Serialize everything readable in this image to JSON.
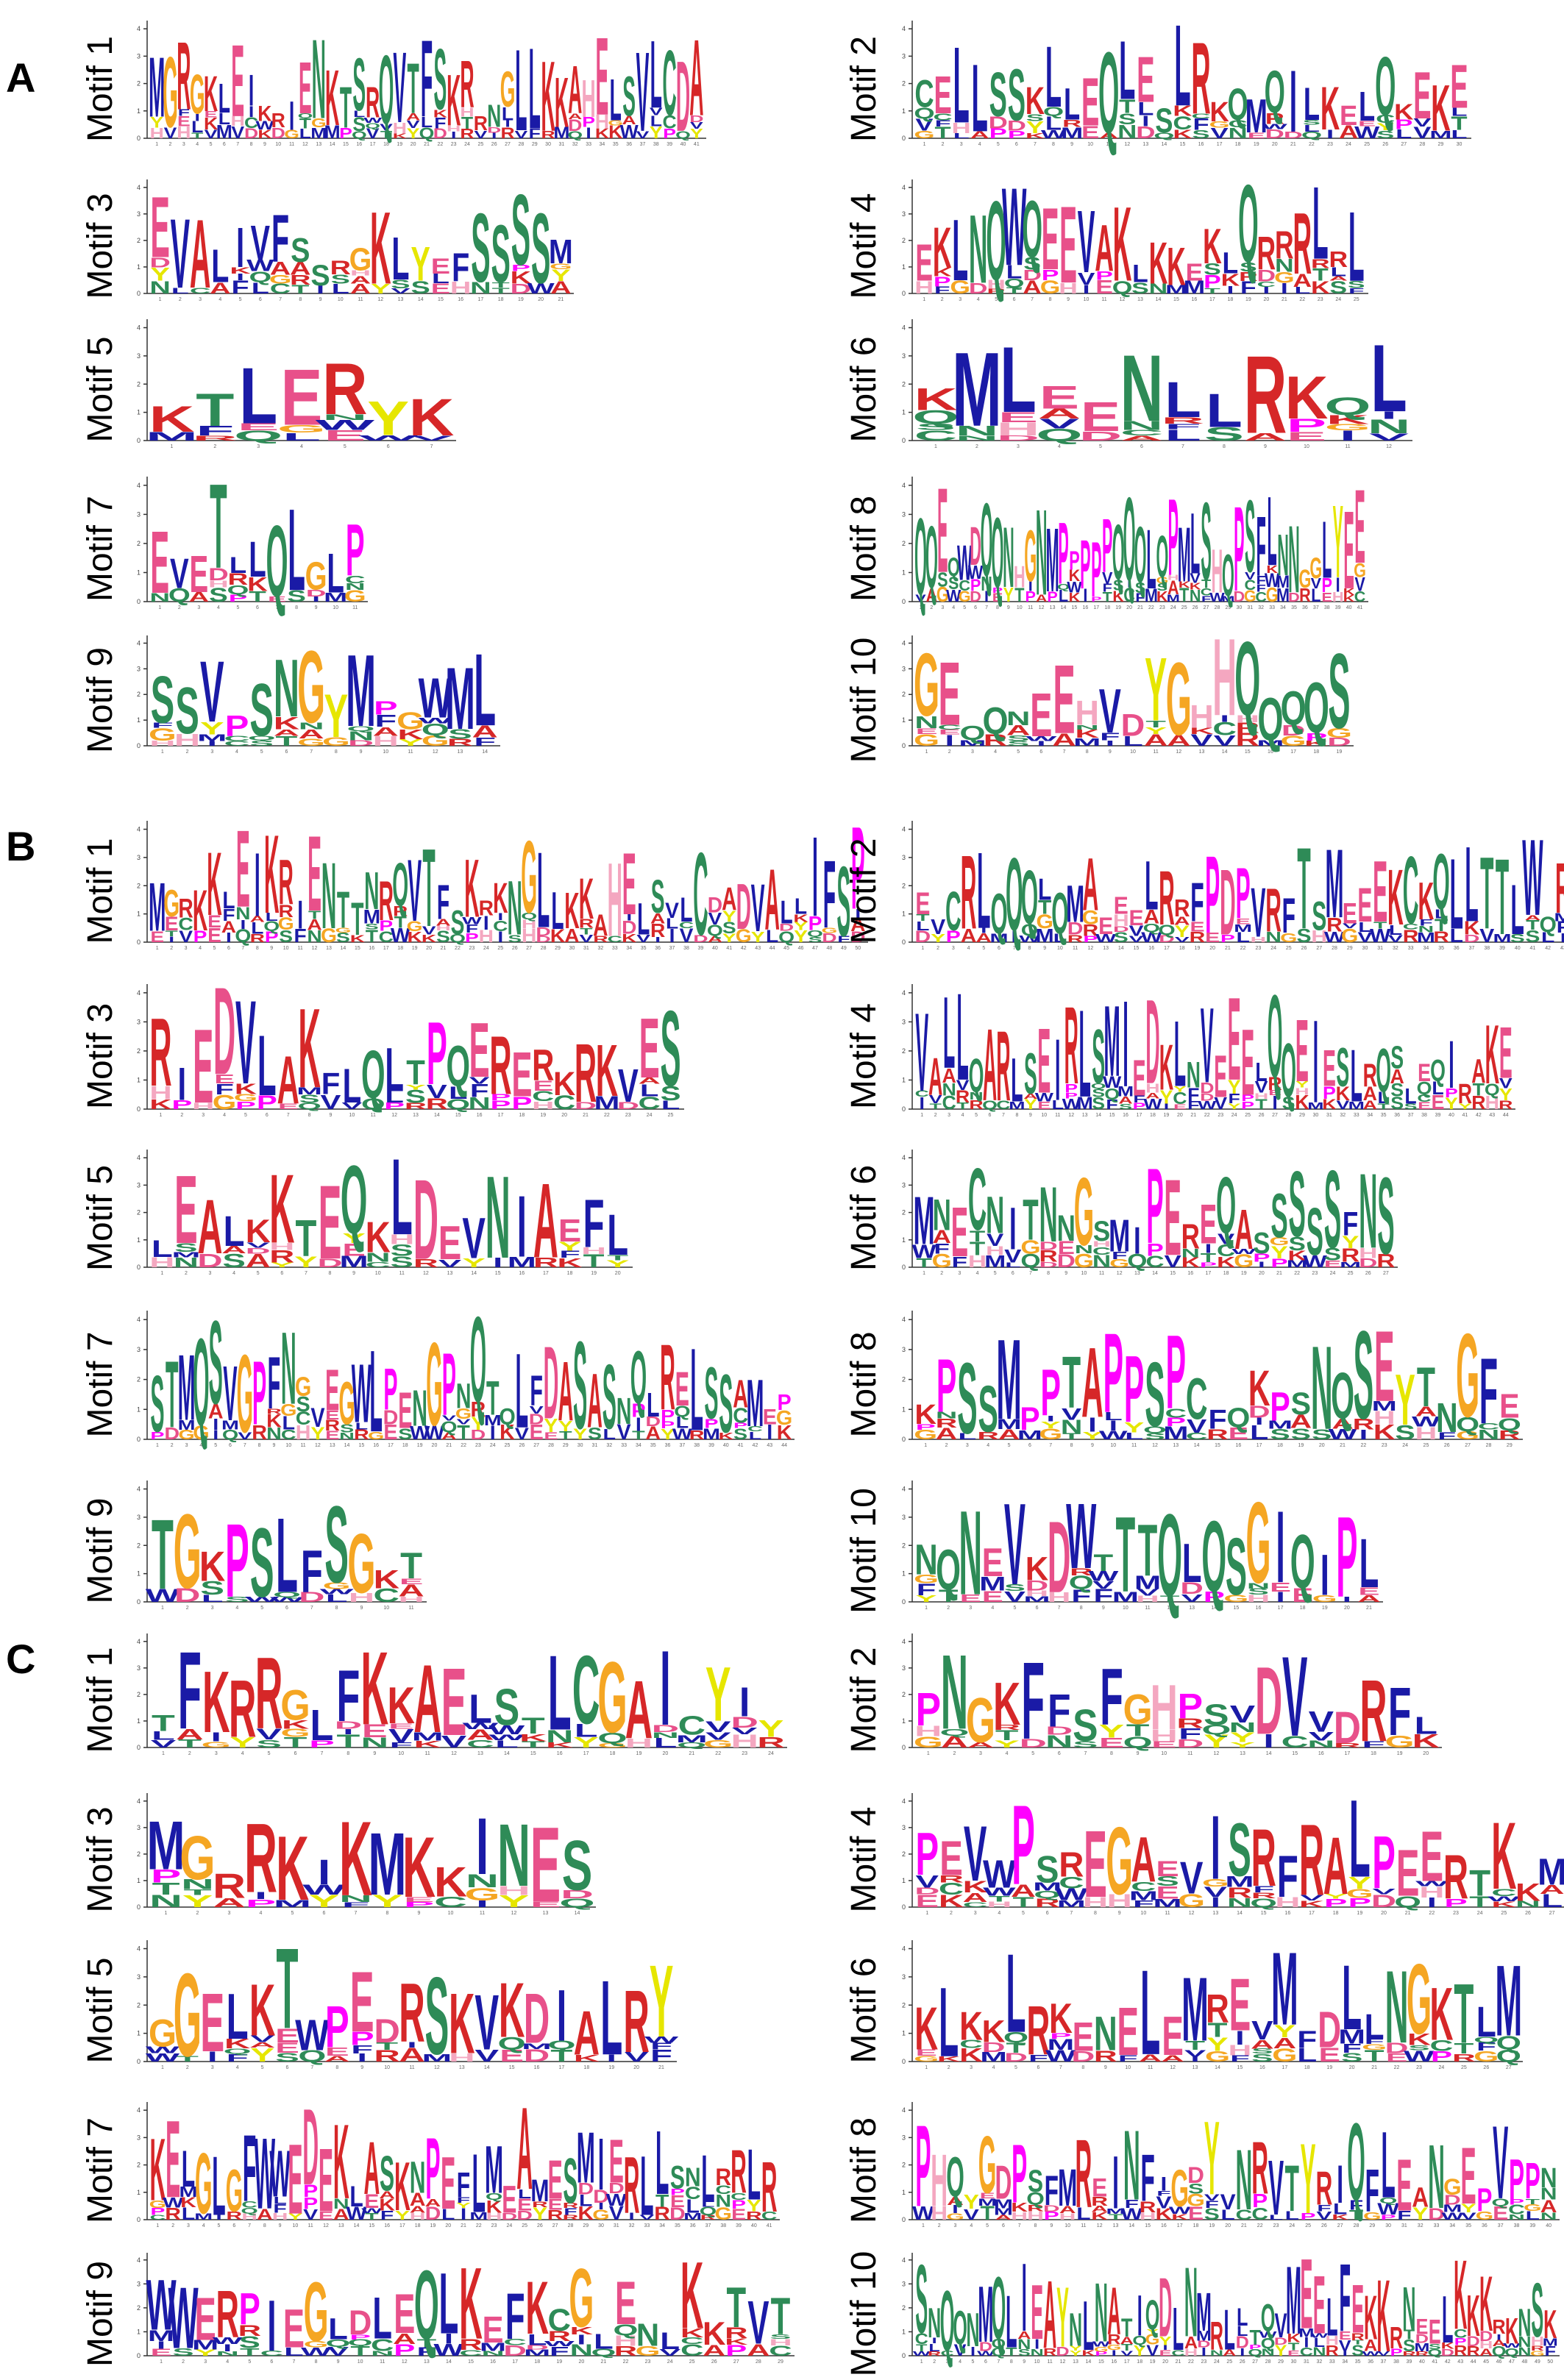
{
  "figure": {
    "panels": [
      {
        "label": "A",
        "motifs": [
          {
            "label": "Motif 1",
            "seq": "MGRGKLEIKRIENKTSRQVTFSKRRNGLLKKAHELSVLCDA"
          },
          {
            "label": "Motif 2",
            "seq": "CELLSSKLLEQLESLRKQMQILKELQKEKE"
          },
          {
            "label": "Motif 3",
            "seq": "EVALIVFSSRGKLYEFSSSSM"
          },
          {
            "label": "Motif 4",
            "seq": "EKLNQWQEEVAKLKKEKLQRRRLRL"
          },
          {
            "label": "Motif 5",
            "seq": "KTLERYK"
          },
          {
            "label": "Motif 6",
            "seq": "KMLEENLLRKQL"
          },
          {
            "label": "Motif 7",
            "seq": "EVETLLQLGLP"
          },
          {
            "label": "Motif 8",
            "seq": "QQEQWDQQNHGNMPPPPPQQQLQPMLSHQPSFLNNGGLYEE"
          },
          {
            "label": "Motif 9",
            "seq": "SSVPSNGYMPGWML"
          },
          {
            "label": "Motif 10",
            "seq": "GEQQNEEHVDYGHHQQQQS"
          }
        ]
      },
      {
        "label": "B",
        "motifs": [
          {
            "label": "Motif 1",
            "seq": "MGRKKLEIKRIENTTNRQVTFSKRKNGLLKKAHELSVLCDADVALLIFSP"
          },
          {
            "label": "Motif 2",
            "seq": "EVCRLQQQLQMAEEELRRFPDPVRFTSMEEEKCKQLLTTLWQRR"
          },
          {
            "label": "Motif 3",
            "seq": "RIEDVLAKFLQLTPQERERKRKVES"
          },
          {
            "label": "Motif 4",
            "seq": "VALLQARLSEIRLSMIEDKLNVEEELQQEIESLRQSLEQIRAKE"
          },
          {
            "label": "Motif 5",
            "seq": "LEALKKTEQKLDEVNIAEFL"
          },
          {
            "label": "Motif 6",
            "seq": "MNECNITNNGSMIPEREQASSSSSFNS"
          },
          {
            "label": "Motif 7",
            "seq": "STMQSVGPFNGVEGWLPENGPNQTQLFDASASNQLRELSSAMEP"
          },
          {
            "label": "Motif 8",
            "seq": "KPSSMPPTAPPSPCFQKPSNQSEYTNGFE"
          },
          {
            "label": "Motif 9",
            "seq": "TGKPSLFSGKT"
          },
          {
            "label": "Motif 10",
            "seq": "NQNEVKDWTTTQLQSGIQIPL"
          }
        ]
      },
      {
        "label": "C",
        "motifs": [
          {
            "label": "Motif 1",
            "seq": "TFKRRGLFKKAELSTLCGAICYIY"
          },
          {
            "label": "Motif 2",
            "seq": "PNGKFFSFGHPSVDVVDRFL"
          },
          {
            "label": "Motif 3",
            "seq": "MGRRKIKMKKINES"
          },
          {
            "label": "Motif 4",
            "seq": "PEVWPSREGAEVISRFRALPEERTKKM"
          },
          {
            "label": "Motif 5",
            "seq": "GGELKTWPEDRSKVKDIALRY"
          },
          {
            "label": "Motif 6",
            "seq": "KLKKLRKENELEMREVMFDLLNGKTLM"
          },
          {
            "label": "Motif 7",
            "seq": "KELGLGFWWEDEKLASKNPEFLMEAMESMIERLLSNLRRLR"
          },
          {
            "label": "Motif 8",
            "seq": "PHQYGDPSFMREINFIGDYVNRVTYRIQFLEANGEPVPPN"
          },
          {
            "label": "Motif 9",
            "seq": "WWERPIEGLDLEQLKEFKCGLENLKKTVT"
          },
          {
            "label": "Motif 10",
            "seq": "SNQQNMQLIEAYNLNATIQDLNMRLLTQVMEELFEKKRNEELKKKRKNSK"
          }
        ]
      }
    ],
    "colors": {
      "A": "#d62728",
      "G": "#f5a623",
      "C": "#2e8b57",
      "D": "#e8508a",
      "E": "#e8508a",
      "F": "#1a1aa6",
      "H": "#f4a7c0",
      "I": "#1a1aa6",
      "K": "#d62728",
      "L": "#1a1aa6",
      "M": "#1a1aa6",
      "N": "#2e8b57",
      "P": "#ff00ff",
      "Q": "#2e8b57",
      "R": "#d62728",
      "S": "#2e8b57",
      "T": "#2e8b57",
      "V": "#1a1aa6",
      "W": "#1a1aa6",
      "Y": "#e6e600"
    }
  }
}
